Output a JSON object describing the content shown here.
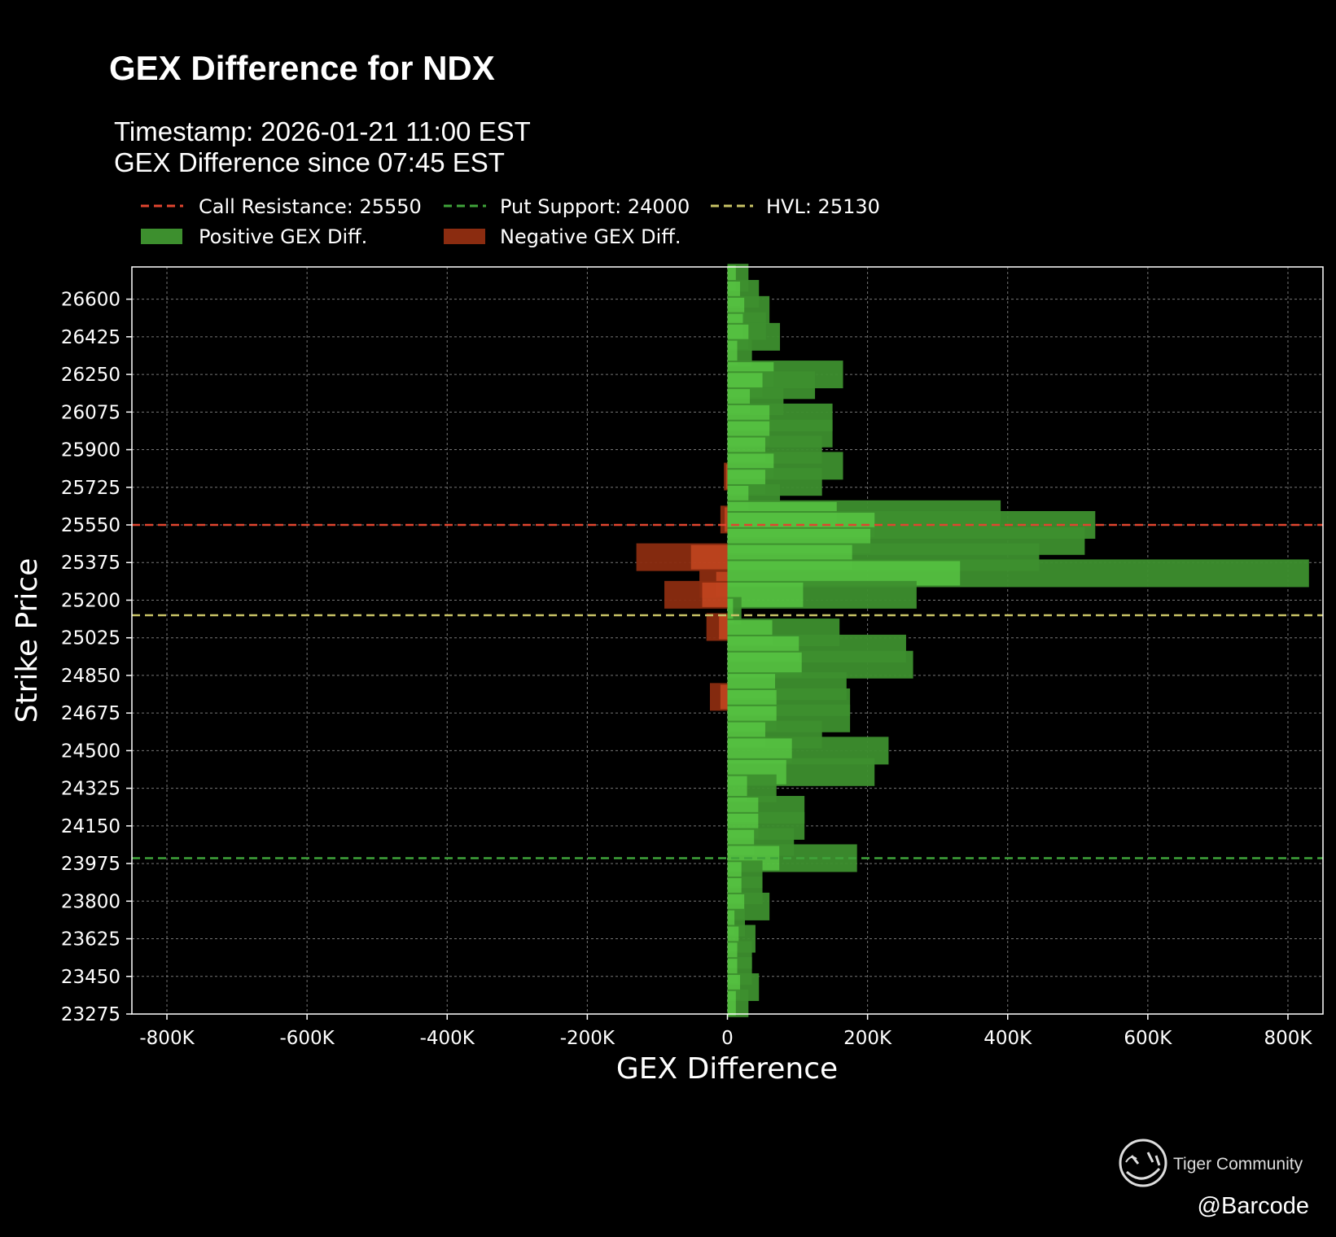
{
  "chart_data": {
    "type": "bar",
    "orientation": "horizontal",
    "title": "GEX Difference for NDX",
    "subtitle_lines": [
      "Timestamp: 2026-01-21 11:00 EST",
      "GEX Difference since 07:45 EST"
    ],
    "xlabel": "GEX Difference",
    "ylabel": "Strike Price",
    "xlim": [
      -850000,
      850000
    ],
    "ylim": [
      23275,
      26750
    ],
    "xticks": [
      -800000,
      -600000,
      -400000,
      -200000,
      0,
      200000,
      400000,
      600000,
      800000
    ],
    "xtick_labels": [
      "-800K",
      "-600K",
      "-400K",
      "-200K",
      "0",
      "200K",
      "400K",
      "600K",
      "800K"
    ],
    "yticks": [
      23275,
      23450,
      23625,
      23800,
      23975,
      24150,
      24325,
      24500,
      24675,
      24850,
      25025,
      25200,
      25375,
      25550,
      25725,
      25900,
      26075,
      26250,
      26425,
      26600
    ],
    "grid": true,
    "legend_position": "top-left, above plot",
    "reference_lines": [
      {
        "label": "Call Resistance: 25550",
        "value": 25550,
        "color": "#e0452f"
      },
      {
        "label": "Put Support: 24000",
        "value": 24000,
        "color": "#3fa43a"
      },
      {
        "label": "HVL: 25130",
        "value": 25130,
        "color": "#c9c366"
      }
    ],
    "series": [
      {
        "name": "Positive GEX Diff.",
        "color": "#3d8f2e",
        "points": [
          {
            "strike": 26700,
            "value": 30000
          },
          {
            "strike": 26625,
            "value": 45000
          },
          {
            "strike": 26550,
            "value": 60000
          },
          {
            "strike": 26475,
            "value": 55000
          },
          {
            "strike": 26425,
            "value": 75000
          },
          {
            "strike": 26350,
            "value": 35000
          },
          {
            "strike": 26250,
            "value": 165000
          },
          {
            "strike": 26200,
            "value": 125000
          },
          {
            "strike": 26125,
            "value": 80000
          },
          {
            "strike": 26050,
            "value": 150000
          },
          {
            "strike": 25975,
            "value": 150000
          },
          {
            "strike": 25900,
            "value": 135000
          },
          {
            "strike": 25825,
            "value": 165000
          },
          {
            "strike": 25750,
            "value": 135000
          },
          {
            "strike": 25675,
            "value": 75000
          },
          {
            "strike": 25600,
            "value": 390000
          },
          {
            "strike": 25550,
            "value": 525000
          },
          {
            "strike": 25475,
            "value": 510000
          },
          {
            "strike": 25400,
            "value": 445000
          },
          {
            "strike": 25325,
            "value": 830000
          },
          {
            "strike": 25225,
            "value": 270000
          },
          {
            "strike": 25150,
            "value": 20000
          },
          {
            "strike": 25050,
            "value": 160000
          },
          {
            "strike": 24975,
            "value": 255000
          },
          {
            "strike": 24900,
            "value": 265000
          },
          {
            "strike": 24800,
            "value": 170000
          },
          {
            "strike": 24725,
            "value": 175000
          },
          {
            "strike": 24650,
            "value": 175000
          },
          {
            "strike": 24575,
            "value": 135000
          },
          {
            "strike": 24500,
            "value": 230000
          },
          {
            "strike": 24400,
            "value": 210000
          },
          {
            "strike": 24325,
            "value": 70000
          },
          {
            "strike": 24225,
            "value": 110000
          },
          {
            "strike": 24150,
            "value": 110000
          },
          {
            "strike": 24075,
            "value": 95000
          },
          {
            "strike": 24000,
            "value": 185000
          },
          {
            "strike": 23925,
            "value": 50000
          },
          {
            "strike": 23850,
            "value": 50000
          },
          {
            "strike": 23775,
            "value": 60000
          },
          {
            "strike": 23700,
            "value": 25000
          },
          {
            "strike": 23625,
            "value": 40000
          },
          {
            "strike": 23550,
            "value": 35000
          },
          {
            "strike": 23475,
            "value": 35000
          },
          {
            "strike": 23400,
            "value": 45000
          },
          {
            "strike": 23325,
            "value": 30000
          }
        ]
      },
      {
        "name": "Negative GEX Diff.",
        "color": "#8b2c10",
        "points": [
          {
            "strike": 25775,
            "value": -5000
          },
          {
            "strike": 25575,
            "value": -10000
          },
          {
            "strike": 25400,
            "value": -130000
          },
          {
            "strike": 25275,
            "value": -40000
          },
          {
            "strike": 25225,
            "value": -90000
          },
          {
            "strike": 25075,
            "value": -30000
          },
          {
            "strike": 24750,
            "value": -25000
          }
        ]
      }
    ]
  },
  "watermark": {
    "name": "Tiger Community",
    "handle": "@Barcode",
    "logo_icon": "tiger-face-icon"
  }
}
